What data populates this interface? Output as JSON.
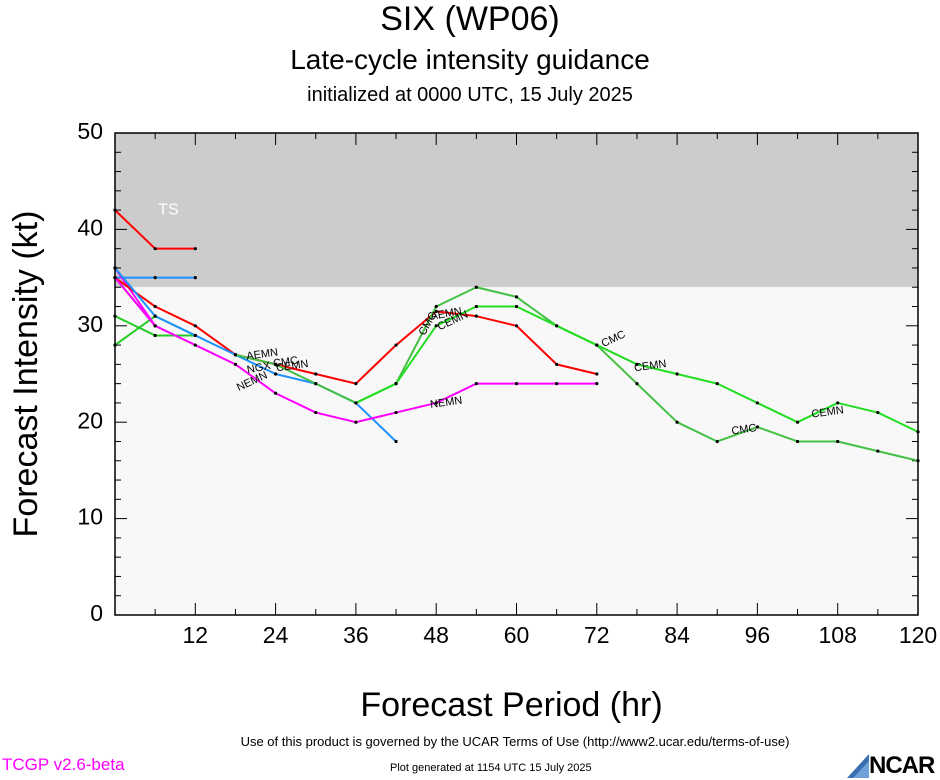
{
  "header": {
    "title": "SIX (WP06)",
    "subtitle": "Late-cycle intensity guidance",
    "initialized": "initialized at 0000 UTC, 15 July 2025"
  },
  "footer": {
    "terms": "Use of this product is governed by the UCAR Terms of Use (http://www2.ucar.edu/terms-of-use)",
    "version": "TCGP v2.6-beta",
    "generated": "Plot generated at 1154 UTC   15 July 2025",
    "logo": "NCAR"
  },
  "chart_data": {
    "type": "line",
    "xlabel": "Forecast Period (hr)",
    "ylabel": "Forecast Intensity (kt)",
    "xlim": [
      0,
      120
    ],
    "ylim": [
      0,
      50
    ],
    "x_ticks": [
      12,
      24,
      36,
      48,
      60,
      72,
      84,
      96,
      108,
      120
    ],
    "y_ticks": [
      0,
      10,
      20,
      30,
      40,
      50
    ],
    "bands": [
      {
        "label": "TS",
        "from": 34,
        "to": 50,
        "color": "#cccccc"
      },
      {
        "label": "",
        "from": 0,
        "to": 34,
        "color": "#f8f8f8"
      }
    ],
    "series": [
      {
        "name": "",
        "color": "#ff0000",
        "points": [
          [
            0,
            42
          ],
          [
            6,
            38
          ],
          [
            12,
            38
          ]
        ]
      },
      {
        "name": "",
        "color": "#1e90ff",
        "points": [
          [
            0,
            35
          ],
          [
            6,
            35
          ],
          [
            12,
            35
          ]
        ]
      },
      {
        "name": "",
        "color": "#22cc22",
        "points": [
          [
            0,
            31
          ],
          [
            6,
            29
          ],
          [
            12,
            29
          ]
        ]
      },
      {
        "name": "",
        "color": "#22cc22",
        "points": [
          [
            0,
            28
          ],
          [
            6,
            31
          ],
          [
            12,
            29
          ]
        ]
      },
      {
        "name": "",
        "color": "#444444",
        "points": [
          [
            0,
            35
          ],
          [
            6,
            30
          ]
        ]
      },
      {
        "name": "",
        "color": "#ff00ff",
        "points": [
          [
            0,
            36
          ],
          [
            6,
            30
          ]
        ]
      },
      {
        "name": "AEMN",
        "color": "#ff0000",
        "points": [
          [
            0,
            35
          ],
          [
            6,
            32
          ],
          [
            12,
            30
          ],
          [
            18,
            27
          ],
          [
            24,
            26
          ],
          [
            30,
            25
          ],
          [
            36,
            24
          ],
          [
            42,
            28
          ],
          [
            48,
            31.5
          ],
          [
            54,
            31
          ],
          [
            60,
            30
          ],
          [
            66,
            26
          ],
          [
            72,
            25
          ]
        ]
      },
      {
        "name": "NGX",
        "color": "#1e90ff",
        "points": [
          [
            0,
            36
          ],
          [
            6,
            31
          ],
          [
            12,
            29
          ],
          [
            18,
            27
          ],
          [
            24,
            25
          ],
          [
            30,
            24
          ],
          [
            36,
            22
          ],
          [
            42,
            18
          ]
        ]
      },
      {
        "name": "NEMN",
        "color": "#ff00ff",
        "points": [
          [
            0,
            35
          ],
          [
            6,
            30
          ],
          [
            12,
            28
          ],
          [
            18,
            26
          ],
          [
            24,
            23
          ],
          [
            30,
            21
          ],
          [
            36,
            20
          ],
          [
            42,
            21
          ],
          [
            48,
            22
          ],
          [
            54,
            24
          ],
          [
            60,
            24
          ],
          [
            66,
            24
          ],
          [
            72,
            24
          ]
        ]
      },
      {
        "name": "CMC",
        "color": "#44c044",
        "points": [
          [
            18,
            27
          ],
          [
            24,
            26
          ],
          [
            30,
            24
          ],
          [
            36,
            22
          ],
          [
            42,
            24
          ],
          [
            48,
            32
          ],
          [
            54,
            34
          ],
          [
            60,
            33
          ],
          [
            66,
            30
          ],
          [
            72,
            28
          ],
          [
            78,
            24
          ],
          [
            84,
            20
          ],
          [
            90,
            18
          ],
          [
            96,
            19.5
          ],
          [
            102,
            18
          ],
          [
            108,
            18
          ],
          [
            114,
            17
          ],
          [
            120,
            16
          ]
        ]
      },
      {
        "name": "CEMN",
        "color": "#22dd22",
        "points": [
          [
            36,
            22
          ],
          [
            42,
            24
          ],
          [
            48,
            30
          ],
          [
            54,
            32
          ],
          [
            60,
            32
          ],
          [
            66,
            30
          ],
          [
            72,
            28
          ],
          [
            78,
            26
          ],
          [
            84,
            25
          ],
          [
            90,
            24
          ],
          [
            96,
            22
          ],
          [
            102,
            20
          ],
          [
            108,
            22
          ],
          [
            114,
            21
          ],
          [
            120,
            19
          ]
        ]
      }
    ],
    "annotations": [
      {
        "text": "TS",
        "x": 8,
        "y": 42,
        "color": "#ffffff"
      },
      {
        "text": "AEMN",
        "x": 22,
        "y": 27.0,
        "color": "#000000",
        "angle": -8
      },
      {
        "text": "NGX",
        "x": 21.5,
        "y": 25.6,
        "color": "#000000",
        "angle": -12
      },
      {
        "text": "CEMN",
        "x": 26.5,
        "y": 25.8,
        "color": "#000000",
        "angle": -8
      },
      {
        "text": "CMC",
        "x": 25.5,
        "y": 26.2,
        "color": "#000000",
        "angle": -8
      },
      {
        "text": "NEMN",
        "x": 20.5,
        "y": 24.2,
        "color": "#000000",
        "angle": -25
      },
      {
        "text": "AEMN",
        "x": 49.5,
        "y": 31.2,
        "color": "#000000",
        "angle": -10
      },
      {
        "text": "CMC",
        "x": 46.8,
        "y": 30.2,
        "color": "#000000",
        "angle": -60
      },
      {
        "text": "CEMN",
        "x": 50.5,
        "y": 30.5,
        "color": "#000000",
        "angle": -25
      },
      {
        "text": "NEMN",
        "x": 49.5,
        "y": 22.0,
        "color": "#000000",
        "angle": -8
      },
      {
        "text": "CMC",
        "x": 74.5,
        "y": 28.6,
        "color": "#000000",
        "angle": -25
      },
      {
        "text": "CEMN",
        "x": 80,
        "y": 25.8,
        "color": "#000000",
        "angle": -8
      },
      {
        "text": "CMC",
        "x": 94,
        "y": 19.2,
        "color": "#000000",
        "angle": -8
      },
      {
        "text": "CEMN",
        "x": 106.5,
        "y": 21.0,
        "color": "#000000",
        "angle": -8
      }
    ]
  }
}
